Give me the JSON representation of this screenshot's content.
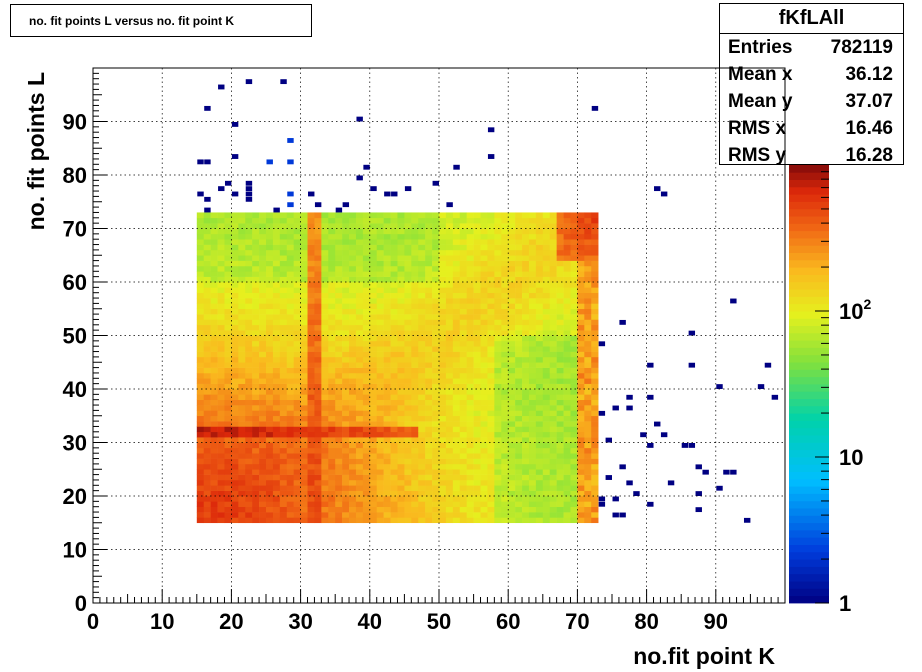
{
  "title": "no. fit points L versus no. fit point K",
  "stats": {
    "name": "fKfLAll",
    "rows": [
      {
        "label": "Entries",
        "value": "782119"
      },
      {
        "label": "Mean x",
        "value": "36.12"
      },
      {
        "label": "Mean y",
        "value": "37.07"
      },
      {
        "label": "RMS x",
        "value": "16.46"
      },
      {
        "label": "RMS y",
        "value": "16.28"
      }
    ]
  },
  "chart_data": {
    "type": "heatmap",
    "title": "no. fit points L versus no. fit point K",
    "xlabel": "no.fit point K",
    "ylabel": "no. fit points  L",
    "xlim": [
      0,
      100
    ],
    "ylim": [
      0,
      100
    ],
    "xticks": [
      "0",
      "10",
      "20",
      "30",
      "40",
      "50",
      "60",
      "70",
      "80",
      "90"
    ],
    "yticks": [
      "0",
      "10",
      "20",
      "30",
      "40",
      "50",
      "60",
      "70",
      "80",
      "90"
    ],
    "z_scale": "log",
    "z_range": [
      1,
      1000
    ],
    "z_ticks": [
      {
        "value": 1,
        "base": "1",
        "exp": ""
      },
      {
        "value": 10,
        "base": "10",
        "exp": ""
      },
      {
        "value": 100,
        "base": "10",
        "exp": "2"
      }
    ],
    "grid": true,
    "dense_region": {
      "x": [
        15,
        73
      ],
      "y": [
        15,
        73
      ]
    },
    "features": [
      {
        "desc": "horizontal ridge",
        "y": 32,
        "x": [
          15,
          45
        ],
        "count": 800
      },
      {
        "desc": "vertical ridge",
        "x": 32,
        "y": [
          15,
          73
        ],
        "count": 500
      },
      {
        "desc": "high corner",
        "x": [
          68,
          73
        ],
        "y": [
          65,
          73
        ],
        "count": 600
      },
      {
        "desc": "high column",
        "x": [
          70,
          73
        ],
        "y": [
          15,
          73
        ],
        "count": 450
      }
    ],
    "sparse_points": [
      [
        16,
        92
      ],
      [
        18,
        96
      ],
      [
        22,
        97
      ],
      [
        27,
        97
      ],
      [
        20,
        89
      ],
      [
        28,
        86
      ],
      [
        38,
        90
      ],
      [
        57,
        88
      ],
      [
        72,
        92
      ],
      [
        15,
        82
      ],
      [
        16,
        82
      ],
      [
        20,
        83
      ],
      [
        25,
        82
      ],
      [
        28,
        82
      ],
      [
        39,
        81
      ],
      [
        52,
        81
      ],
      [
        57,
        83
      ],
      [
        15,
        76
      ],
      [
        16,
        75
      ],
      [
        18,
        77
      ],
      [
        19,
        78
      ],
      [
        20,
        76
      ],
      [
        22,
        78
      ],
      [
        22,
        77
      ],
      [
        22,
        76
      ],
      [
        22,
        75
      ],
      [
        26,
        73
      ],
      [
        28,
        76
      ],
      [
        28,
        74
      ],
      [
        31,
        76
      ],
      [
        32,
        74
      ],
      [
        35,
        73
      ],
      [
        36,
        74
      ],
      [
        38,
        79
      ],
      [
        40,
        77
      ],
      [
        42,
        76
      ],
      [
        43,
        76
      ],
      [
        45,
        77
      ],
      [
        49,
        78
      ],
      [
        51,
        74
      ],
      [
        16,
        73
      ],
      [
        81,
        77
      ],
      [
        82,
        76
      ],
      [
        73,
        48
      ],
      [
        76,
        52
      ],
      [
        86,
        50
      ],
      [
        92,
        56
      ],
      [
        80,
        44
      ],
      [
        86,
        44
      ],
      [
        97,
        44
      ],
      [
        90,
        40
      ],
      [
        96,
        40
      ],
      [
        98,
        38
      ],
      [
        77,
        38
      ],
      [
        80,
        38
      ],
      [
        73,
        35
      ],
      [
        75,
        36
      ],
      [
        77,
        36
      ],
      [
        81,
        33
      ],
      [
        79,
        31
      ],
      [
        82,
        31
      ],
      [
        74,
        30
      ],
      [
        80,
        29
      ],
      [
        85,
        29
      ],
      [
        86,
        29
      ],
      [
        76,
        25
      ],
      [
        83,
        22
      ],
      [
        87,
        25
      ],
      [
        88,
        24
      ],
      [
        90,
        21
      ],
      [
        91,
        24
      ],
      [
        92,
        24
      ],
      [
        74,
        23
      ],
      [
        77,
        22
      ],
      [
        78,
        20
      ],
      [
        80,
        18
      ],
      [
        73,
        19
      ],
      [
        73,
        18
      ],
      [
        75,
        19
      ],
      [
        87,
        20
      ],
      [
        87,
        17
      ],
      [
        75,
        16
      ],
      [
        76,
        16
      ],
      [
        94,
        15
      ]
    ]
  }
}
